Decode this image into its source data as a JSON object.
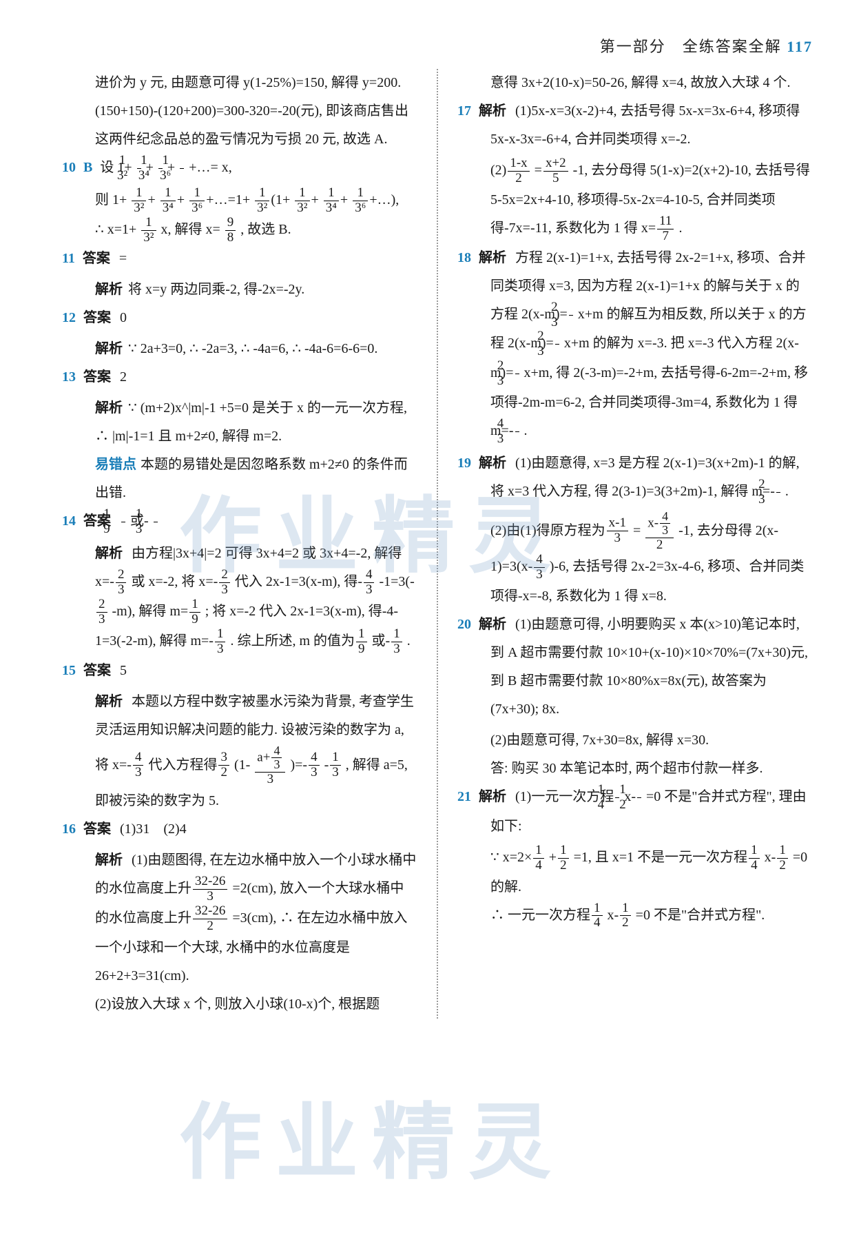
{
  "header": {
    "section": "第一部分　全练答案全解",
    "page": "117"
  },
  "watermark": "作业精灵",
  "left": {
    "intro": "进价为 y 元, 由题意可得 y(1-25%)=150, 解得 y=200. (150+150)-(120+200)=300-320=-20(元), 即该商店售出这两件纪念品总的盈亏情况为亏损 20 元, 故选 A.",
    "q10": {
      "num": "10",
      "ans": "B",
      "l1": "设 1+",
      "f1n": "1",
      "f1d": "3²",
      "p1": "+",
      "f2n": "1",
      "f2d": "3⁴",
      "p2": "+",
      "f3n": "1",
      "f3d": "3⁶",
      "p3": "+…= x,",
      "l2": "则 1+",
      "g1n": "1",
      "g1d": "3²",
      "q1": "+",
      "g2n": "1",
      "g2d": "3⁴",
      "q2": "+",
      "g3n": "1",
      "g3d": "3⁶",
      "q3": "+…=1+",
      "g4n": "1",
      "g4d": "3²",
      "q4": "(1+",
      "g5n": "1",
      "g5d": "3²",
      "q5": "+",
      "g6n": "1",
      "g6d": "3⁴",
      "q6": "+",
      "g7n": "1",
      "g7d": "3⁶",
      "q7": "+…),",
      "l3": "∴ x=1+",
      "h1n": "1",
      "h1d": "3²",
      "r1": "x, 解得 x=",
      "h2n": "9",
      "h2d": "8",
      "r2": ", 故选 B."
    },
    "q11": {
      "num": "11",
      "label": "答案",
      "ans": "=",
      "jx": "解析",
      "body": "将 x=y 两边同乘-2, 得-2x=-2y."
    },
    "q12": {
      "num": "12",
      "label": "答案",
      "ans": "0",
      "jx": "解析",
      "body": "∵ 2a+3=0, ∴ -2a=3, ∴ -4a=6, ∴ -4a-6=6-6=0."
    },
    "q13": {
      "num": "13",
      "label": "答案",
      "ans": "2",
      "jx": "解析",
      "l1": "∵ (m+2)x^|m|-1 +5=0 是关于 x 的一元一次方程, ∴ |m|-1=1 且 m+2≠0, 解得 m=2.",
      "yi": "易错点",
      "l2": "本题的易错处是因忽略系数 m+2≠0 的条件而出错."
    },
    "q14": {
      "num": "14",
      "label": "答案",
      "a1n": "1",
      "a1d": "9",
      "or": "或-",
      "a2n": "1",
      "a2d": "3",
      "jx": "解析",
      "b1": "由方程|3x+4|=2 可得 3x+4=2 或 3x+4=-2, 解得 x=-",
      "f1n": "2",
      "f1d": "3",
      "b2": "或 x=-2, 将 x=-",
      "f2n": "2",
      "f2d": "3",
      "b3": "代入 2x-1=3(x-m), 得-",
      "f3n": "4",
      "f3d": "3",
      "b4": "-1=3(-",
      "f4n": "2",
      "f4d": "3",
      "b5": "-m), 解得 m=",
      "f5n": "1",
      "f5d": "9",
      "b6": "; 将 x=-2 代入 2x-1=3(x-m), 得-4-1=3(-2-m), 解得 m=-",
      "f6n": "1",
      "f6d": "3",
      "b7": ". 综上所述, m 的值为",
      "f7n": "1",
      "f7d": "9",
      "b8": "或-",
      "f8n": "1",
      "f8d": "3",
      "b9": "."
    },
    "q15": {
      "num": "15",
      "label": "答案",
      "ans": "5",
      "jx": "解析",
      "b1": "本题以方程中数字被墨水污染为背景, 考查学生灵活运用知识解决问题的能力. 设被污染的数字为 a, 将 x=-",
      "f1n": "4",
      "f1d": "3",
      "b2": "代入方程得",
      "f2n": "3",
      "f2d": "2",
      "b3": "(1-",
      "f3n": "a+",
      "f3n2": "4",
      "f3d2": "3",
      "f3d": "3",
      "b4": ")=-",
      "f4n": "4",
      "f4d": "3",
      "b5": "-",
      "f5n": "1",
      "f5d": "3",
      "b6": ", 解得 a=5, 即被污染的数字为 5."
    },
    "q16": {
      "num": "16",
      "label": "答案",
      "ans": "(1)31　(2)4",
      "jx": "解析",
      "b1": "(1)由题图得, 在左边水桶中放入一个小球水桶中的水位高度上升",
      "f1n": "32-26",
      "f1d": "3",
      "b2": "=2(cm), 放入一个大球水桶中的水位高度上升",
      "f2n": "32-26",
      "f2d": "2",
      "b3": "=3(cm), ∴ 在左边水桶中放入一个小球和一个大球, 水桶中的水位高度是 26+2+3=31(cm).",
      "b4": "(2)设放入大球 x 个, 则放入小球(10-x)个, 根据题"
    }
  },
  "right": {
    "cont": "意得 3x+2(10-x)=50-26, 解得 x=4, 故放入大球 4 个.",
    "q17": {
      "num": "17",
      "jx": "解析",
      "b1": "(1)5x-x=3(x-2)+4, 去括号得 5x-x=3x-6+4, 移项得 5x-x-3x=-6+4, 合并同类项得 x=-2.",
      "b2": "(2)",
      "f1n": "1-x",
      "f1d": "2",
      "p1": "=",
      "f2n": "x+2",
      "f2d": "5",
      "p2": "-1, 去分母得 5(1-x)=2(x+2)-10, 去括号得 5-5x=2x+4-10, 移项得-5x-2x=4-10-5, 合并同类项得-7x=-11, 系数化为 1 得 x=",
      "f3n": "11",
      "f3d": "7",
      "p3": "."
    },
    "q18": {
      "num": "18",
      "jx": "解析",
      "b1": "方程 2(x-1)=1+x, 去括号得 2x-2=1+x, 移项、合并同类项得 x=3, 因为方程 2(x-1)=1+x 的解与关于 x 的方程 2(x-m)=",
      "f1n": "2",
      "f1d": "3",
      "b2": "x+m 的解互为相反数, 所以关于 x 的方程 2(x-m)=",
      "f2n": "2",
      "f2d": "3",
      "b3": "x+m 的解为 x=-3. 把 x=-3 代入方程 2(x-m)=",
      "f3n": "2",
      "f3d": "3",
      "b4": "x+m, 得 2(-3-m)=-2+m, 去括号得-6-2m=-2+m, 移项得-2m-m=6-2, 合并同类项得-3m=4, 系数化为 1 得 m=-",
      "f4n": "4",
      "f4d": "3",
      "b5": "."
    },
    "q19": {
      "num": "19",
      "jx": "解析",
      "b1": "(1)由题意得, x=3 是方程 2(x-1)=3(x+2m)-1 的解, 将 x=3 代入方程, 得 2(3-1)=3(3+2m)-1, 解得 m=-",
      "f1n": "2",
      "f1d": "3",
      "b2": ".",
      "b3": "(2)由(1)得原方程为",
      "f2n": "x-1",
      "f2d": "3",
      "p1": "=",
      "f3a": "x-",
      "f3n": "4",
      "f3d": "3",
      "f3dd": "2",
      "p2": "-1, 去分母得 2(x-1)=3(x-",
      "f4n": "4",
      "f4d": "3",
      "b4": ")-6, 去括号得 2x-2=3x-4-6, 移项、合并同类项得-x=-8, 系数化为 1 得 x=8."
    },
    "q20": {
      "num": "20",
      "jx": "解析",
      "b1": "(1)由题意可得, 小明要购买 x 本(x>10)笔记本时, 到 A 超市需要付款 10×10+(x-10)×10×70%=(7x+30)元, 到 B 超市需要付款 10×80%x=8x(元), 故答案为(7x+30); 8x.",
      "b2": "(2)由题意可得, 7x+30=8x, 解得 x=30.",
      "b3": "答: 购买 30 本笔记本时, 两个超市付款一样多."
    },
    "q21": {
      "num": "21",
      "jx": "解析",
      "b1": "(1)一元一次方程",
      "f1n": "1",
      "f1d": "4",
      "p1": "x-",
      "f2n": "1",
      "f2d": "2",
      "p2": "=0 不是\"合并式方程\", 理由如下:",
      "b2": "∵ x=2×",
      "f3n": "1",
      "f3d": "4",
      "p3": "+",
      "f4n": "1",
      "f4d": "2",
      "p4": "=1, 且 x=1 不是一元一次方程",
      "f5n": "1",
      "f5d": "4",
      "p5": "x-",
      "f6n": "1",
      "f6d": "2",
      "p6": "=0 的解.",
      "b3": "∴ 一元一次方程",
      "f7n": "1",
      "f7d": "4",
      "p7": "x-",
      "f8n": "1",
      "f8d": "2",
      "p8": "=0 不是\"合并式方程\"."
    }
  }
}
